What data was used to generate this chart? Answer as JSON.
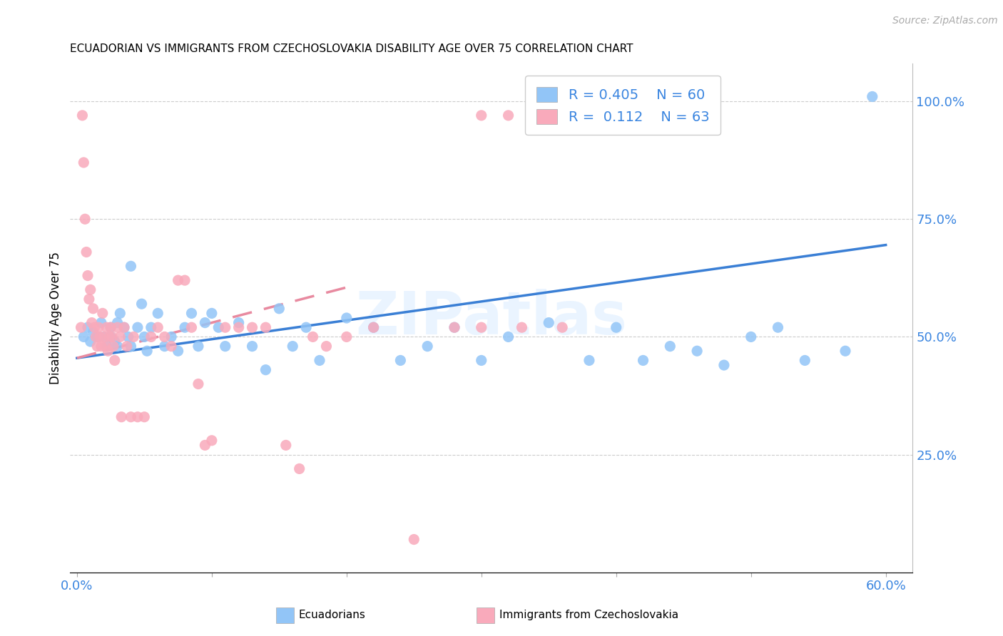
{
  "title": "ECUADORIAN VS IMMIGRANTS FROM CZECHOSLOVAKIA DISABILITY AGE OVER 75 CORRELATION CHART",
  "source": "Source: ZipAtlas.com",
  "ylabel": "Disability Age Over 75",
  "ylabel_right_ticks": [
    "100.0%",
    "75.0%",
    "50.0%",
    "25.0%"
  ],
  "ylabel_right_vals": [
    1.0,
    0.75,
    0.5,
    0.25
  ],
  "xlim": [
    -0.005,
    0.62
  ],
  "ylim": [
    0.0,
    1.08
  ],
  "watermark": "ZIPatlas",
  "blue_color": "#92C5F7",
  "pink_color": "#F9AABB",
  "blue_line_color": "#3a7fd5",
  "pink_line_color": "#e88aa0",
  "blue_scatter_x": [
    0.005,
    0.008,
    0.01,
    0.012,
    0.015,
    0.018,
    0.02,
    0.022,
    0.025,
    0.025,
    0.028,
    0.03,
    0.03,
    0.032,
    0.035,
    0.038,
    0.04,
    0.04,
    0.045,
    0.048,
    0.05,
    0.052,
    0.055,
    0.06,
    0.065,
    0.07,
    0.075,
    0.08,
    0.085,
    0.09,
    0.095,
    0.1,
    0.105,
    0.11,
    0.12,
    0.13,
    0.14,
    0.15,
    0.16,
    0.17,
    0.18,
    0.2,
    0.22,
    0.24,
    0.26,
    0.28,
    0.3,
    0.32,
    0.35,
    0.38,
    0.4,
    0.42,
    0.44,
    0.46,
    0.48,
    0.5,
    0.52,
    0.54,
    0.57,
    0.59
  ],
  "blue_scatter_y": [
    0.5,
    0.52,
    0.49,
    0.51,
    0.5,
    0.53,
    0.5,
    0.48,
    0.52,
    0.5,
    0.49,
    0.53,
    0.48,
    0.55,
    0.52,
    0.5,
    0.48,
    0.65,
    0.52,
    0.57,
    0.5,
    0.47,
    0.52,
    0.55,
    0.48,
    0.5,
    0.47,
    0.52,
    0.55,
    0.48,
    0.53,
    0.55,
    0.52,
    0.48,
    0.53,
    0.48,
    0.43,
    0.56,
    0.48,
    0.52,
    0.45,
    0.54,
    0.52,
    0.45,
    0.48,
    0.52,
    0.45,
    0.5,
    0.53,
    0.45,
    0.52,
    0.45,
    0.48,
    0.47,
    0.44,
    0.5,
    0.52,
    0.45,
    0.47,
    1.01
  ],
  "pink_scatter_x": [
    0.003,
    0.004,
    0.005,
    0.006,
    0.007,
    0.008,
    0.009,
    0.01,
    0.011,
    0.012,
    0.013,
    0.014,
    0.015,
    0.016,
    0.017,
    0.018,
    0.019,
    0.02,
    0.021,
    0.022,
    0.023,
    0.024,
    0.025,
    0.026,
    0.027,
    0.028,
    0.03,
    0.032,
    0.033,
    0.035,
    0.037,
    0.04,
    0.042,
    0.045,
    0.05,
    0.055,
    0.06,
    0.065,
    0.07,
    0.075,
    0.08,
    0.085,
    0.09,
    0.095,
    0.1,
    0.11,
    0.12,
    0.13,
    0.14,
    0.155,
    0.165,
    0.175,
    0.185,
    0.2,
    0.22,
    0.25,
    0.28,
    0.3,
    0.33,
    0.36,
    0.39,
    0.3,
    0.32
  ],
  "pink_scatter_y": [
    0.52,
    0.97,
    0.87,
    0.75,
    0.68,
    0.63,
    0.58,
    0.6,
    0.53,
    0.56,
    0.52,
    0.5,
    0.48,
    0.52,
    0.5,
    0.48,
    0.55,
    0.5,
    0.48,
    0.52,
    0.47,
    0.5,
    0.52,
    0.5,
    0.48,
    0.45,
    0.52,
    0.5,
    0.33,
    0.52,
    0.48,
    0.33,
    0.5,
    0.33,
    0.33,
    0.5,
    0.52,
    0.5,
    0.48,
    0.62,
    0.62,
    0.52,
    0.4,
    0.27,
    0.28,
    0.52,
    0.52,
    0.52,
    0.52,
    0.27,
    0.22,
    0.5,
    0.48,
    0.5,
    0.52,
    0.07,
    0.52,
    0.52,
    0.52,
    0.52,
    0.97,
    0.97,
    0.97
  ],
  "blue_line_x0": 0.0,
  "blue_line_y0": 0.455,
  "blue_line_x1": 0.6,
  "blue_line_y1": 0.695,
  "pink_line_x0": 0.0,
  "pink_line_y0": 0.455,
  "pink_line_x1": 0.2,
  "pink_line_y1": 0.605
}
